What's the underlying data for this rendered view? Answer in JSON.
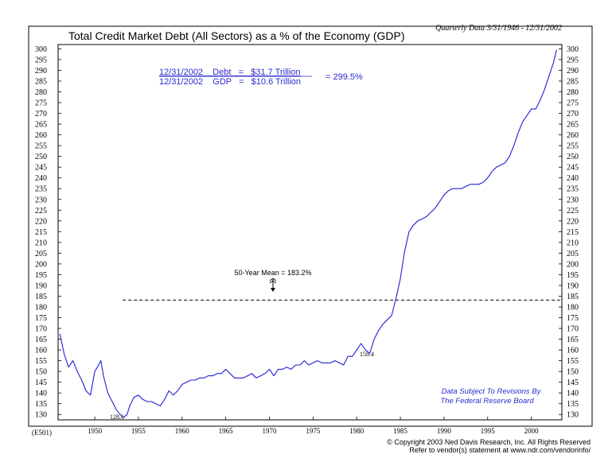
{
  "chart_data": {
    "type": "line",
    "title": "Total Credit Market Debt (All Sectors) as a % of the Economy (GDP)",
    "data_period_note": "Quarterly Data 3/31/1946 - 12/31/2002",
    "chart_id": "(E501)",
    "xlabel": "",
    "ylabel": "",
    "xlim": [
      1945.8,
      2003.5
    ],
    "ylim": [
      127.5,
      302
    ],
    "y_ticks": [
      130,
      135,
      140,
      145,
      150,
      155,
      160,
      165,
      170,
      175,
      180,
      185,
      190,
      195,
      200,
      205,
      210,
      215,
      220,
      225,
      230,
      235,
      240,
      245,
      250,
      255,
      260,
      265,
      270,
      275,
      280,
      285,
      290,
      295,
      300
    ],
    "x_ticks": [
      1950,
      1955,
      1960,
      1965,
      1970,
      1975,
      1980,
      1985,
      1990,
      1995,
      2000
    ],
    "grid": false,
    "series": [
      {
        "color": "#1f1fd6",
        "x": [
          1946.0,
          1946.5,
          1947.0,
          1947.5,
          1948.0,
          1948.5,
          1949.0,
          1949.5,
          1950.0,
          1950.3,
          1950.7,
          1951.0,
          1951.5,
          1952.0,
          1952.5,
          1952.9,
          1953.3,
          1953.7,
          1954.0,
          1954.5,
          1955.0,
          1955.5,
          1956.0,
          1956.5,
          1957.0,
          1957.5,
          1958.0,
          1958.5,
          1959.0,
          1959.5,
          1960.0,
          1960.5,
          1961.0,
          1961.5,
          1962.0,
          1962.5,
          1963.0,
          1963.5,
          1964.0,
          1964.5,
          1965.0,
          1965.5,
          1966.0,
          1966.5,
          1967.0,
          1967.5,
          1968.0,
          1968.5,
          1969.0,
          1969.5,
          1970.0,
          1970.5,
          1971.0,
          1971.5,
          1972.0,
          1972.5,
          1973.0,
          1973.5,
          1974.0,
          1974.5,
          1975.0,
          1975.5,
          1976.0,
          1976.5,
          1977.0,
          1977.5,
          1978.0,
          1978.5,
          1979.0,
          1979.5,
          1980.0,
          1980.5,
          1981.0,
          1981.5,
          1982.0,
          1982.5,
          1983.0,
          1983.5,
          1984.0,
          1984.5,
          1985.0,
          1985.5,
          1986.0,
          1986.5,
          1987.0,
          1987.5,
          1988.0,
          1988.5,
          1989.0,
          1989.5,
          1990.0,
          1990.5,
          1991.0,
          1991.5,
          1992.0,
          1992.5,
          1993.0,
          1993.5,
          1994.0,
          1994.5,
          1995.0,
          1995.5,
          1996.0,
          1996.5,
          1997.0,
          1997.5,
          1998.0,
          1998.5,
          1999.0,
          1999.5,
          2000.0,
          2000.5,
          2001.0,
          2001.5,
          2002.0,
          2002.5,
          2002.9
        ],
        "y": [
          167.5,
          158,
          152,
          155,
          150,
          146,
          141,
          139,
          150,
          152,
          155,
          148,
          140,
          136,
          132,
          130,
          128.6,
          130,
          134,
          138,
          139,
          137,
          136,
          136,
          135,
          134,
          137,
          141,
          139,
          141,
          144,
          145,
          146,
          146,
          147,
          147,
          148,
          148,
          149,
          149,
          151,
          149,
          147,
          147,
          147,
          148,
          149,
          147,
          148,
          149,
          151,
          148,
          151,
          151,
          152,
          151,
          153,
          153,
          155,
          153,
          154,
          155,
          154,
          154,
          154,
          155,
          154,
          153,
          157,
          157,
          160,
          163,
          160,
          158.4,
          165,
          169,
          172,
          174,
          176,
          184,
          193,
          206,
          215,
          218,
          220,
          221,
          222,
          224,
          226,
          229,
          232,
          234,
          235,
          235,
          235,
          236,
          237,
          237,
          237,
          238,
          240,
          243,
          245,
          246,
          247,
          250,
          255,
          261,
          266,
          269,
          272,
          272,
          276,
          281,
          287,
          293,
          299.5
        ]
      }
    ],
    "annotations": {
      "debt_line": "12/31/2002    Debt   =   $31.7 Trillion",
      "gdp_line": "12/31/2002    GDP   =   $10.6 Trillion",
      "ratio": "= 299.5%",
      "mean_label": "50-Year Mean = 183.2%",
      "mean_value": 183.2,
      "low_label_1953": "128.6",
      "low_label_1982": "158.4",
      "revisions_line1": "Data Subject To Revisions By",
      "revisions_line2": "The Federal Reserve Board"
    },
    "footer": {
      "copyright": "© Copyright 2003 Ned Davis Research, Inc. All Rights Reserved",
      "refer": "Refer to vendor(s) statement at www.ndr.com/vendorinfo/"
    },
    "colors": {
      "series": "#1f1fd6",
      "annotation_blue": "#2a2ad0",
      "mean_line": "#000000",
      "frame": "#000000"
    }
  }
}
